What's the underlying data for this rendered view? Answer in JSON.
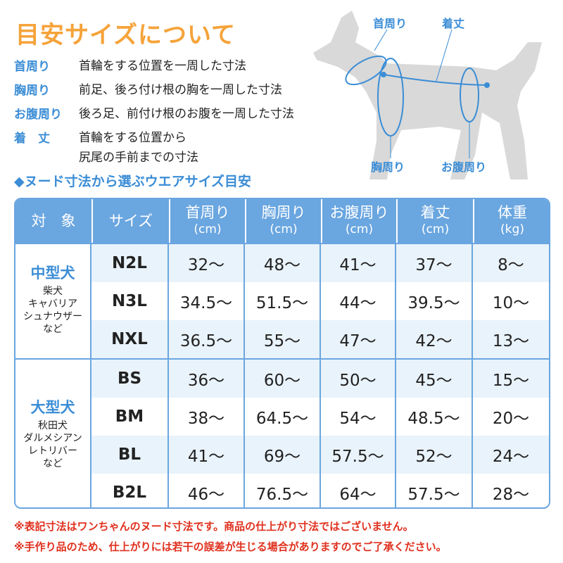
{
  "title": "目安サイズについて",
  "definitions": [
    {
      "term": "首周り",
      "desc": "首輪をする位置を一周した寸法"
    },
    {
      "term": "胸周り",
      "desc": "前足、後ろ付け根の胸を一周した寸法"
    },
    {
      "term": "お腹周り",
      "desc": "後ろ足、前付け根のお腹を一周した寸法"
    },
    {
      "term": "着　丈",
      "desc": "首輪をする位置から",
      "desc2": "尻尾の手前までの寸法"
    }
  ],
  "diagram": {
    "neck": "首周り",
    "length": "着丈",
    "chest": "胸周り",
    "belly": "お腹周り"
  },
  "subtitle": "◆ヌード寸法から選ぶウエアサイズ目安",
  "colors": {
    "accent": "#3b8dd6",
    "title": "#f5a33a",
    "header": "#6aa6e0",
    "note": "#e0301e"
  },
  "table": {
    "headers": [
      {
        "label": "対　象"
      },
      {
        "label": "サイズ"
      },
      {
        "label": "首周り",
        "unit": "(cm)"
      },
      {
        "label": "胸周り",
        "unit": "(cm)"
      },
      {
        "label": "お腹周り",
        "unit": "(cm)"
      },
      {
        "label": "着丈",
        "unit": "(cm)"
      },
      {
        "label": "体重",
        "unit": "(kg)"
      }
    ],
    "groups": [
      {
        "name": "中型犬",
        "breeds": [
          "柴犬",
          "キャバリア",
          "シュナウザー",
          "など"
        ],
        "rows": [
          [
            "N2L",
            "32〜",
            "48〜",
            "41〜",
            "37〜",
            "8〜"
          ],
          [
            "N3L",
            "34.5〜",
            "51.5〜",
            "44〜",
            "39.5〜",
            "10〜"
          ],
          [
            "NXL",
            "36.5〜",
            "55〜",
            "47〜",
            "42〜",
            "13〜"
          ]
        ]
      },
      {
        "name": "大型犬",
        "breeds": [
          "秋田犬",
          "ダルメシアン",
          "レトリバー",
          "など"
        ],
        "rows": [
          [
            "BS",
            "36〜",
            "60〜",
            "50〜",
            "45〜",
            "15〜"
          ],
          [
            "BM",
            "38〜",
            "64.5〜",
            "54〜",
            "48.5〜",
            "20〜"
          ],
          [
            "BL",
            "41〜",
            "69〜",
            "57.5〜",
            "52〜",
            "24〜"
          ],
          [
            "B2L",
            "46〜",
            "76.5〜",
            "64〜",
            "57.5〜",
            "28〜"
          ]
        ]
      }
    ]
  },
  "notes": [
    "※表記寸法はワンちゃんのヌード寸法です。商品の仕上がり寸法ではございません。",
    "※手作り品のため、仕上がりには若干の誤差が生じる場合がありますのでご了承ください。"
  ]
}
